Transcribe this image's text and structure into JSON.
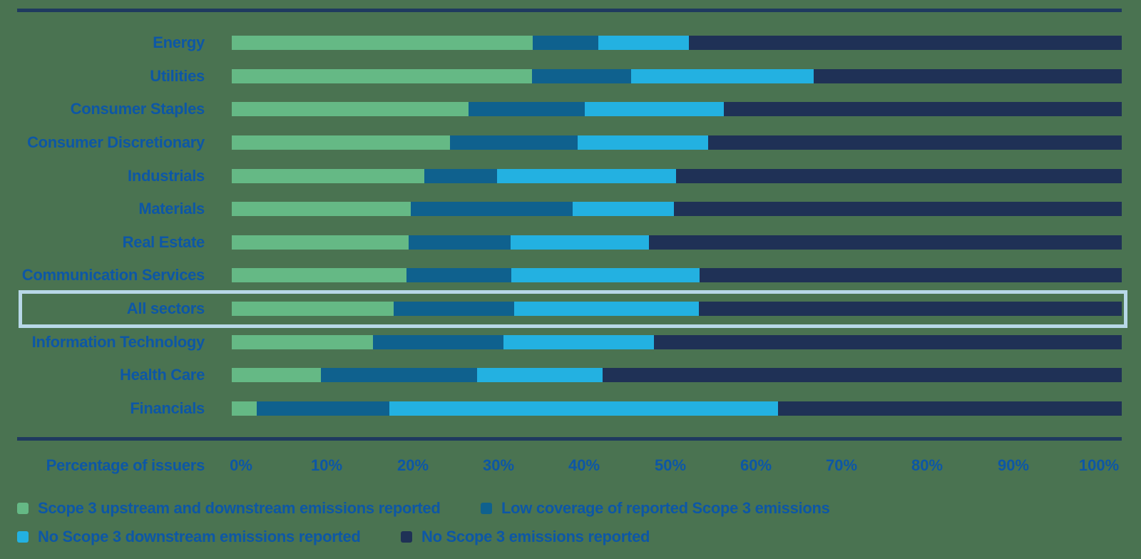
{
  "chart_data": {
    "type": "bar",
    "orientation": "horizontal",
    "stacked": true,
    "xlabel_caption": "Percentage of issuers",
    "categories": [
      "Energy",
      "Utilities",
      "Consumer Staples",
      "Consumer Discretionary",
      "Industrials",
      "Materials",
      "Real Estate",
      "Communication Services",
      "All sectors",
      "Information Technology",
      "Health Care",
      "Financials"
    ],
    "highlighted_category": "All sectors",
    "series": [
      {
        "name": "Scope 3 upstream and downstream emissions reported",
        "color": "#65B985",
        "values": [
          33.8,
          33.7,
          26.6,
          24.5,
          21.6,
          20.1,
          19.9,
          19.6,
          18.2,
          15.9,
          10.0,
          2.8
        ]
      },
      {
        "name": "Low coverage of reported Scope 3 emissions",
        "color": "#0F618E",
        "values": [
          7.4,
          11.2,
          13.1,
          14.4,
          8.2,
          18.2,
          11.4,
          11.8,
          13.5,
          14.6,
          17.6,
          14.9
        ]
      },
      {
        "name": "No Scope 3 downstream emissions reported",
        "color": "#23B1E1",
        "values": [
          10.2,
          20.5,
          15.6,
          14.6,
          20.1,
          11.4,
          15.6,
          21.2,
          20.8,
          16.9,
          14.1,
          43.7
        ]
      },
      {
        "name": "No Scope 3 emissions reported",
        "color": "#1F3156",
        "values": [
          48.6,
          34.6,
          44.7,
          46.5,
          50.1,
          50.3,
          53.1,
          47.4,
          47.5,
          52.6,
          58.3,
          38.6
        ]
      }
    ],
    "x_ticks": [
      "0%",
      "10%",
      "20%",
      "30%",
      "40%",
      "50%",
      "60%",
      "70%",
      "80%",
      "90%",
      "100%"
    ],
    "xlim": [
      0,
      100
    ],
    "legend_position": "bottom"
  },
  "style": {
    "background": "#4A7351",
    "text_color": "#0D57A6",
    "rule_color": "#1F3A5F",
    "highlight_border_color": "#B8D8E8"
  }
}
